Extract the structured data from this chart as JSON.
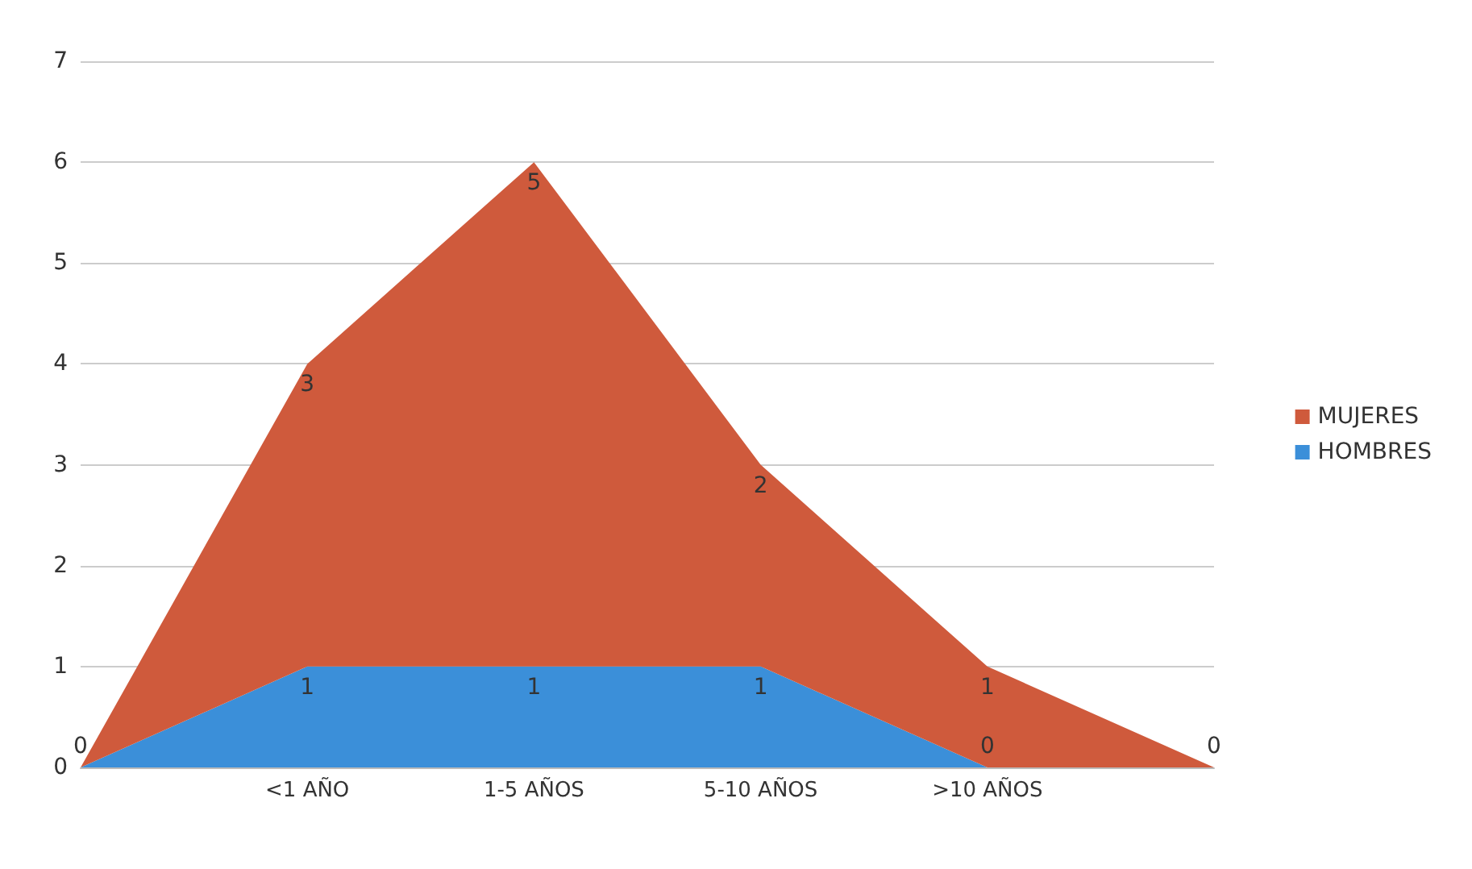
{
  "chart_data": {
    "type": "area",
    "stacked": true,
    "categories": [
      null,
      "<1 AÑO",
      "1-5 AÑOS",
      "5-10 AÑOS",
      ">10 AÑOS",
      null
    ],
    "series": [
      {
        "name": "HOMBRES",
        "color": "#3b8fd9",
        "values": [
          0,
          1,
          1,
          1,
          0,
          0
        ],
        "value_labels": [
          null,
          "1",
          "1",
          "1",
          "0",
          null
        ]
      },
      {
        "name": "MUJERES",
        "color": "#cf5a3c",
        "values": [
          0,
          3,
          5,
          2,
          1,
          0
        ],
        "value_labels": [
          "0",
          "3",
          "5",
          "2",
          "1",
          "0"
        ]
      }
    ],
    "ylim": [
      0,
      7
    ],
    "yticks": [
      0,
      1,
      2,
      3,
      4,
      5,
      6,
      7
    ],
    "grid": "y",
    "legend": "right"
  }
}
